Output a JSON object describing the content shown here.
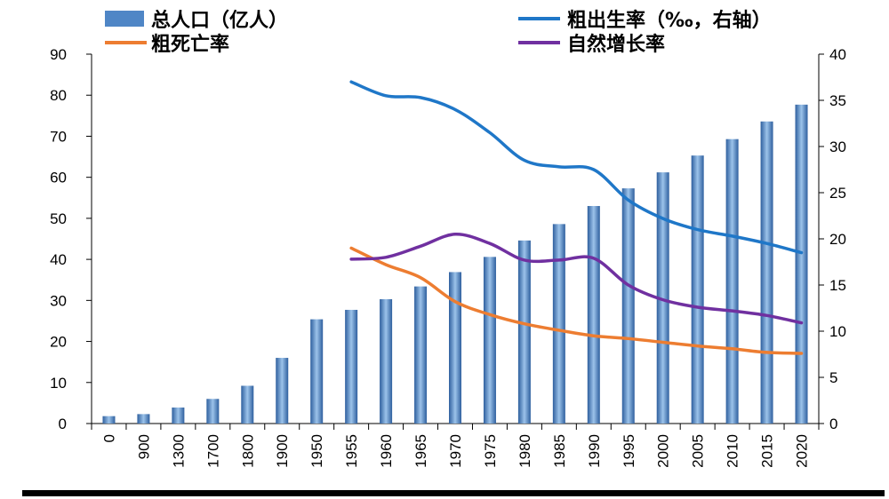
{
  "chart_data": {
    "type": "bar",
    "categories": [
      "0",
      "900",
      "1300",
      "1700",
      "1800",
      "1900",
      "1950",
      "1955",
      "1960",
      "1965",
      "1970",
      "1975",
      "1980",
      "1985",
      "1990",
      "1995",
      "2000",
      "2005",
      "2010",
      "2015",
      "2020"
    ],
    "legend": {
      "population": "总人口（亿人）",
      "birth_rate": "粗出生率（‰，右轴）",
      "death_rate": "粗死亡率",
      "growth_rate": "自然增长率"
    },
    "left_axis": {
      "ylim": [
        0,
        90
      ],
      "ticks": [
        "0",
        "10",
        "20",
        "30",
        "40",
        "50",
        "60",
        "70",
        "80",
        "90"
      ]
    },
    "right_axis": {
      "ylim": [
        0,
        40
      ],
      "ticks": [
        "0",
        "5",
        "10",
        "15",
        "20",
        "25",
        "30",
        "35",
        "40"
      ]
    },
    "series": [
      {
        "name": "总人口（亿人）",
        "type": "bar",
        "axis": "left",
        "color": "#4f86c6",
        "values": [
          1.8,
          2.3,
          3.9,
          6.0,
          9.2,
          16.0,
          25.4,
          27.7,
          30.3,
          33.4,
          36.9,
          40.6,
          44.6,
          48.6,
          53.0,
          57.3,
          61.2,
          65.3,
          69.3,
          73.6,
          77.7
        ]
      },
      {
        "name": "粗出生率（‰，右轴）",
        "type": "line",
        "axis": "right",
        "color": "#1f77c8",
        "values": [
          null,
          null,
          null,
          null,
          null,
          null,
          null,
          37.0,
          35.5,
          35.3,
          34.0,
          31.5,
          28.5,
          27.8,
          27.5,
          24.2,
          22.2,
          21.0,
          20.3,
          19.5,
          18.5
        ]
      },
      {
        "name": "粗死亡率",
        "type": "line",
        "axis": "right",
        "color": "#ed7d31",
        "values": [
          null,
          null,
          null,
          null,
          null,
          null,
          null,
          19.0,
          17.2,
          15.8,
          13.2,
          11.8,
          10.8,
          10.1,
          9.5,
          9.2,
          8.8,
          8.4,
          8.1,
          7.7,
          7.6
        ]
      },
      {
        "name": "自然增长率",
        "type": "line",
        "axis": "right",
        "color": "#7030a0",
        "values": [
          null,
          null,
          null,
          null,
          null,
          null,
          null,
          17.8,
          18.0,
          19.2,
          20.5,
          19.5,
          17.7,
          17.7,
          17.9,
          15.0,
          13.4,
          12.6,
          12.2,
          11.7,
          10.9
        ]
      }
    ]
  }
}
